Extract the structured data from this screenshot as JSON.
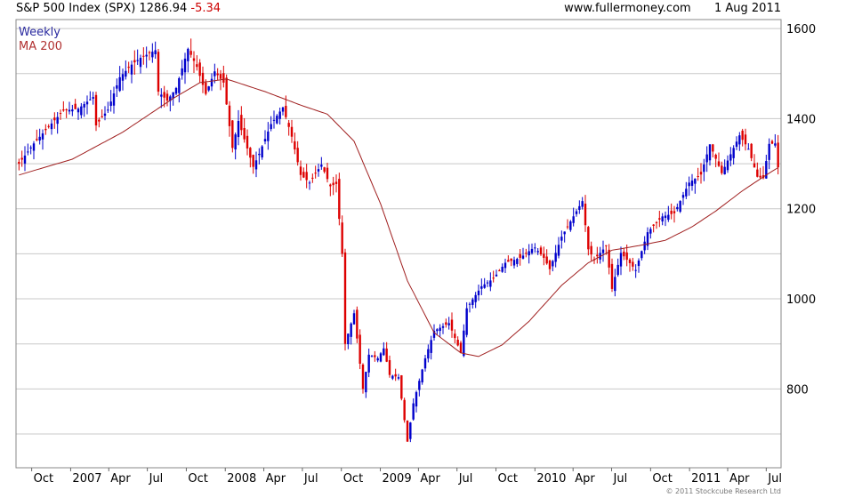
{
  "header": {
    "symbol": "S&P 500 Index (SPX)",
    "price": "1286.94",
    "change": "-5.34",
    "source": "www.fullermoney.com",
    "date": "1 Aug 2011"
  },
  "legend": {
    "interval": "Weekly",
    "ma": "MA 200"
  },
  "copyright": "© 2011 Stockcube Research Ltd",
  "colors": {
    "up": "#0000cc",
    "down": "#dd0000",
    "ma": "#a02020",
    "grid": "#c8c8c8",
    "frame": "#888888"
  },
  "chart_data": {
    "type": "candlestick",
    "interval": "Weekly",
    "yscale": "linear",
    "ylim": [
      625,
      1620
    ],
    "y_ticks": [
      800,
      1000,
      1200,
      1400,
      1600
    ],
    "x_labels": [
      "Oct",
      "2007",
      "Apr",
      "Jul",
      "Oct",
      "2008",
      "Apr",
      "Jul",
      "Oct",
      "2009",
      "Apr",
      "Jul",
      "Oct",
      "2010",
      "Apr",
      "Jul",
      "Oct",
      "2011",
      "Apr",
      "Jul"
    ],
    "grid": true,
    "close_path": [
      [
        "2006-09-01",
        1300
      ],
      [
        "2006-10-06",
        1345
      ],
      [
        "2006-11-10",
        1382
      ],
      [
        "2006-12-15",
        1418
      ],
      [
        "2007-01-19",
        1422
      ],
      [
        "2007-02-23",
        1448
      ],
      [
        "2007-03-02",
        1385
      ],
      [
        "2007-03-30",
        1420
      ],
      [
        "2007-04-27",
        1492
      ],
      [
        "2007-05-25",
        1520
      ],
      [
        "2007-06-15",
        1535
      ],
      [
        "2007-07-20",
        1552
      ],
      [
        "2007-07-27",
        1460
      ],
      [
        "2007-08-17",
        1440
      ],
      [
        "2007-09-07",
        1468
      ],
      [
        "2007-10-05",
        1555
      ],
      [
        "2007-10-26",
        1515
      ],
      [
        "2007-11-16",
        1455
      ],
      [
        "2007-12-07",
        1505
      ],
      [
        "2007-12-28",
        1480
      ],
      [
        "2008-01-18",
        1335
      ],
      [
        "2008-02-01",
        1395
      ],
      [
        "2008-03-07",
        1293
      ],
      [
        "2008-03-21",
        1322
      ],
      [
        "2008-04-18",
        1388
      ],
      [
        "2008-05-16",
        1425
      ],
      [
        "2008-06-06",
        1360
      ],
      [
        "2008-06-27",
        1275
      ],
      [
        "2008-07-18",
        1258
      ],
      [
        "2008-08-15",
        1298
      ],
      [
        "2008-09-05",
        1250
      ],
      [
        "2008-09-19",
        1255
      ],
      [
        "2008-10-03",
        1100
      ],
      [
        "2008-10-10",
        900
      ],
      [
        "2008-10-31",
        968
      ],
      [
        "2008-11-21",
        800
      ],
      [
        "2008-12-05",
        876
      ],
      [
        "2008-12-26",
        868
      ],
      [
        "2009-01-09",
        890
      ],
      [
        "2009-01-23",
        831
      ],
      [
        "2009-02-13",
        826
      ],
      [
        "2009-03-06",
        683
      ],
      [
        "2009-03-20",
        768
      ],
      [
        "2009-04-17",
        868
      ],
      [
        "2009-05-08",
        929
      ],
      [
        "2009-06-12",
        946
      ],
      [
        "2009-07-10",
        880
      ],
      [
        "2009-07-24",
        979
      ],
      [
        "2009-08-28",
        1028
      ],
      [
        "2009-09-25",
        1045
      ],
      [
        "2009-10-23",
        1080
      ],
      [
        "2009-11-27",
        1091
      ],
      [
        "2009-12-31",
        1115
      ],
      [
        "2010-01-22",
        1091
      ],
      [
        "2010-02-05",
        1066
      ],
      [
        "2010-03-05",
        1138
      ],
      [
        "2010-04-23",
        1217
      ],
      [
        "2010-05-07",
        1110
      ],
      [
        "2010-05-21",
        1087
      ],
      [
        "2010-06-18",
        1117
      ],
      [
        "2010-07-02",
        1022
      ],
      [
        "2010-07-23",
        1102
      ],
      [
        "2010-08-27",
        1064
      ],
      [
        "2010-09-24",
        1148
      ],
      [
        "2010-10-29",
        1183
      ],
      [
        "2010-11-26",
        1190
      ],
      [
        "2010-12-31",
        1258
      ],
      [
        "2011-01-28",
        1276
      ],
      [
        "2011-02-18",
        1343
      ],
      [
        "2011-03-18",
        1279
      ],
      [
        "2011-04-29",
        1363
      ],
      [
        "2011-05-20",
        1333
      ],
      [
        "2011-06-10",
        1271
      ],
      [
        "2011-06-24",
        1268
      ],
      [
        "2011-07-08",
        1344
      ],
      [
        "2011-07-22",
        1345
      ],
      [
        "2011-07-29",
        1292
      ],
      [
        "2011-08-01",
        1287
      ]
    ],
    "ma200_path": [
      [
        "2006-09-01",
        1275
      ],
      [
        "2007-01-05",
        1310
      ],
      [
        "2007-05-04",
        1370
      ],
      [
        "2007-08-31",
        1445
      ],
      [
        "2007-11-02",
        1480
      ],
      [
        "2008-01-04",
        1488
      ],
      [
        "2008-04-04",
        1460
      ],
      [
        "2008-06-27",
        1430
      ],
      [
        "2008-08-29",
        1410
      ],
      [
        "2008-10-31",
        1350
      ],
      [
        "2009-01-02",
        1210
      ],
      [
        "2009-03-06",
        1040
      ],
      [
        "2009-05-08",
        925
      ],
      [
        "2009-07-10",
        880
      ],
      [
        "2009-08-21",
        872
      ],
      [
        "2009-10-16",
        898
      ],
      [
        "2009-12-18",
        950
      ],
      [
        "2010-03-05",
        1030
      ],
      [
        "2010-05-07",
        1080
      ],
      [
        "2010-07-02",
        1108
      ],
      [
        "2010-09-03",
        1118
      ],
      [
        "2010-11-05",
        1130
      ],
      [
        "2011-01-07",
        1160
      ],
      [
        "2011-03-04",
        1195
      ],
      [
        "2011-05-06",
        1240
      ],
      [
        "2011-07-01",
        1275
      ],
      [
        "2011-08-01",
        1293
      ]
    ]
  }
}
